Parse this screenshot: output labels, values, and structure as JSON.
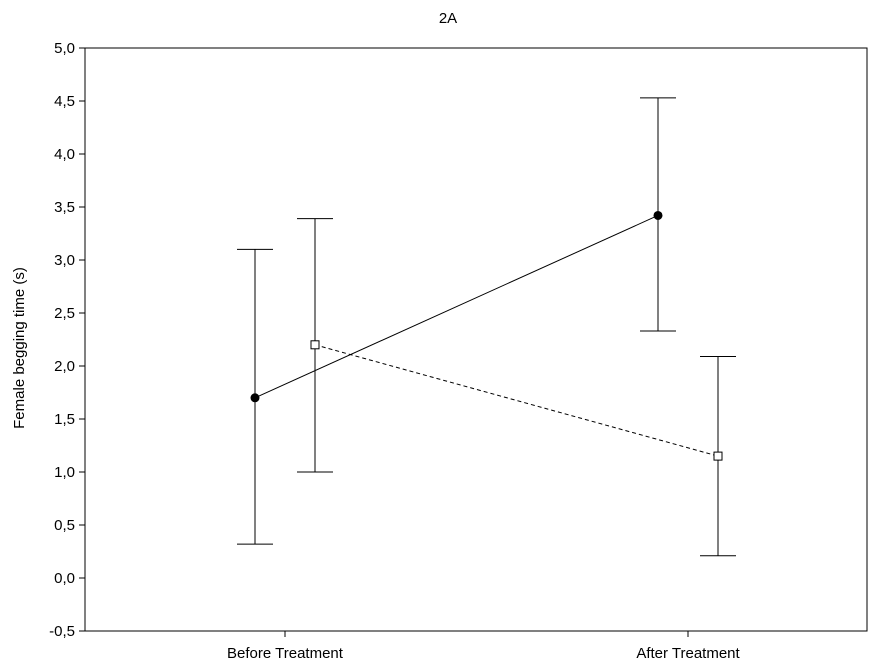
{
  "chart_data": {
    "type": "line",
    "title": "2A",
    "xlabel": "",
    "ylabel": "Female begging time (s)",
    "categories": [
      "Before Treatment",
      "After Treatment"
    ],
    "ylim": [
      -0.5,
      5.0
    ],
    "yticks": [
      "-0,5",
      "0,0",
      "0,5",
      "1,0",
      "1,5",
      "2,0",
      "2,5",
      "3,0",
      "3,5",
      "4,0",
      "4,5",
      "5,0"
    ],
    "ytick_values": [
      -0.5,
      0.0,
      0.5,
      1.0,
      1.5,
      2.0,
      2.5,
      3.0,
      3.5,
      4.0,
      4.5,
      5.0
    ],
    "grid": false,
    "series": [
      {
        "marker": "filled-circle",
        "line_style": "solid",
        "values": [
          1.7,
          3.42
        ],
        "error_low": [
          0.32,
          2.33
        ],
        "error_high": [
          3.1,
          4.53
        ]
      },
      {
        "marker": "open-square",
        "line_style": "dashed",
        "values": [
          2.2,
          1.15
        ],
        "error_low": [
          1.0,
          0.21
        ],
        "error_high": [
          3.39,
          2.09
        ]
      }
    ]
  }
}
